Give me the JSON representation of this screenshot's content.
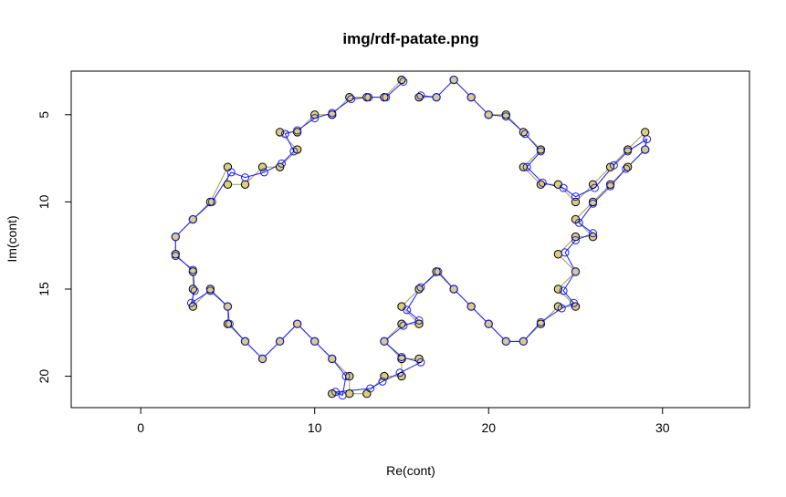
{
  "chart_data": {
    "type": "line",
    "title": "img/rdf-patate.png",
    "xlabel": "Re(cont)",
    "ylabel": "Im(cont)",
    "xlim": [
      -4,
      35
    ],
    "ylim": [
      21.8,
      2.5
    ],
    "x_ticks": [
      0,
      10,
      20,
      30
    ],
    "y_ticks": [
      5,
      10,
      15,
      20
    ],
    "grid": false,
    "series": [
      {
        "role": "original contour points",
        "style": "circles",
        "points": [
          [
            15,
            3
          ],
          [
            14,
            4
          ],
          [
            13,
            4
          ],
          [
            12,
            4
          ],
          [
            11,
            5
          ],
          [
            10,
            5
          ],
          [
            9,
            6
          ],
          [
            8,
            6
          ],
          [
            9,
            7
          ],
          [
            8,
            8
          ],
          [
            7,
            8
          ],
          [
            6,
            9
          ],
          [
            5,
            9
          ],
          [
            5,
            8
          ],
          [
            4,
            10
          ],
          [
            3,
            11
          ],
          [
            2,
            12
          ],
          [
            2,
            13
          ],
          [
            3,
            14
          ],
          [
            3,
            15
          ],
          [
            3,
            16
          ],
          [
            4,
            15
          ],
          [
            5,
            16
          ],
          [
            5,
            17
          ],
          [
            6,
            18
          ],
          [
            7,
            19
          ],
          [
            8,
            18
          ],
          [
            9,
            17
          ],
          [
            10,
            18
          ],
          [
            11,
            19
          ],
          [
            12,
            20
          ],
          [
            12,
            21
          ],
          [
            11,
            21
          ],
          [
            13,
            21
          ],
          [
            14,
            20
          ],
          [
            15,
            20
          ],
          [
            15,
            19
          ],
          [
            16,
            19
          ],
          [
            15,
            19
          ],
          [
            14,
            18
          ],
          [
            15,
            17
          ],
          [
            16,
            17
          ],
          [
            15,
            16
          ],
          [
            16,
            15
          ],
          [
            17,
            14
          ],
          [
            18,
            15
          ],
          [
            19,
            16
          ],
          [
            20,
            17
          ],
          [
            21,
            18
          ],
          [
            22,
            18
          ],
          [
            23,
            17
          ],
          [
            24,
            16
          ],
          [
            25,
            16
          ],
          [
            24,
            15
          ],
          [
            25,
            14
          ],
          [
            24,
            13
          ],
          [
            25,
            12
          ],
          [
            26,
            12
          ],
          [
            25,
            11
          ],
          [
            26,
            10
          ],
          [
            27,
            9
          ],
          [
            28,
            8
          ],
          [
            29,
            7
          ],
          [
            29,
            6
          ],
          [
            28,
            7
          ],
          [
            27,
            8
          ],
          [
            26,
            9
          ],
          [
            25,
            10
          ],
          [
            24,
            9
          ],
          [
            23,
            9
          ],
          [
            22,
            8
          ],
          [
            23,
            7
          ],
          [
            22,
            6
          ],
          [
            21,
            5
          ],
          [
            20,
            5
          ],
          [
            19,
            4
          ],
          [
            18,
            3
          ],
          [
            17,
            4
          ],
          [
            16,
            4
          ]
        ]
      },
      {
        "role": "reconstructed contour",
        "style": "line+circles",
        "points": [
          [
            15.1,
            3.1
          ],
          [
            14.1,
            4
          ],
          [
            13.1,
            4
          ],
          [
            12.1,
            4.1
          ],
          [
            11,
            4.9
          ],
          [
            10,
            5.2
          ],
          [
            9,
            5.9
          ],
          [
            8.3,
            6.1
          ],
          [
            8.8,
            7.1
          ],
          [
            8.1,
            7.8
          ],
          [
            7.1,
            8.3
          ],
          [
            6,
            8.6
          ],
          [
            5.2,
            8.3
          ],
          [
            4.1,
            10
          ],
          [
            3,
            11
          ],
          [
            2,
            12
          ],
          [
            2,
            13.1
          ],
          [
            3,
            13.9
          ],
          [
            3.1,
            15.1
          ],
          [
            2.9,
            15.8
          ],
          [
            4,
            15.1
          ],
          [
            5,
            16
          ],
          [
            5.1,
            17
          ],
          [
            6,
            18
          ],
          [
            7,
            19
          ],
          [
            8,
            18
          ],
          [
            9,
            17
          ],
          [
            10,
            18
          ],
          [
            11,
            19
          ],
          [
            11.8,
            20
          ],
          [
            11.6,
            21.1
          ],
          [
            11.2,
            20.9
          ],
          [
            13.2,
            20.7
          ],
          [
            13.9,
            20.3
          ],
          [
            14.9,
            19.8
          ],
          [
            16.1,
            19.2
          ],
          [
            15,
            18.9
          ],
          [
            14,
            18
          ],
          [
            15.1,
            17.1
          ],
          [
            16,
            16.8
          ],
          [
            15.3,
            16.2
          ],
          [
            16.1,
            14.9
          ],
          [
            17.1,
            14
          ],
          [
            18,
            15
          ],
          [
            19,
            16
          ],
          [
            20,
            17
          ],
          [
            21,
            18
          ],
          [
            22,
            18
          ],
          [
            23,
            16.9
          ],
          [
            24.2,
            16.1
          ],
          [
            24.9,
            15.8
          ],
          [
            24.3,
            15.1
          ],
          [
            25,
            14
          ],
          [
            24.4,
            12.9
          ],
          [
            25,
            12.2
          ],
          [
            26,
            11.8
          ],
          [
            25.2,
            11.2
          ],
          [
            26,
            10.1
          ],
          [
            27,
            9.1
          ],
          [
            27.9,
            8.1
          ],
          [
            29,
            7
          ],
          [
            29.1,
            6.4
          ],
          [
            28,
            7.1
          ],
          [
            27.2,
            7.9
          ],
          [
            26.1,
            9.2
          ],
          [
            25,
            9.7
          ],
          [
            24.3,
            9.2
          ],
          [
            23.1,
            8.9
          ],
          [
            22.2,
            8
          ],
          [
            23,
            7.1
          ],
          [
            22.1,
            6.1
          ],
          [
            21,
            5.1
          ],
          [
            20,
            5
          ],
          [
            19,
            4
          ],
          [
            18,
            3
          ],
          [
            17,
            4
          ],
          [
            16.1,
            3.9
          ]
        ]
      }
    ],
    "colors": {
      "original_points": "#000000",
      "original_fill": "#d9cf7a",
      "reconstructed_line": "#1a1aff",
      "secondary_line": "#8f8f3a",
      "axes": "#000000"
    }
  }
}
